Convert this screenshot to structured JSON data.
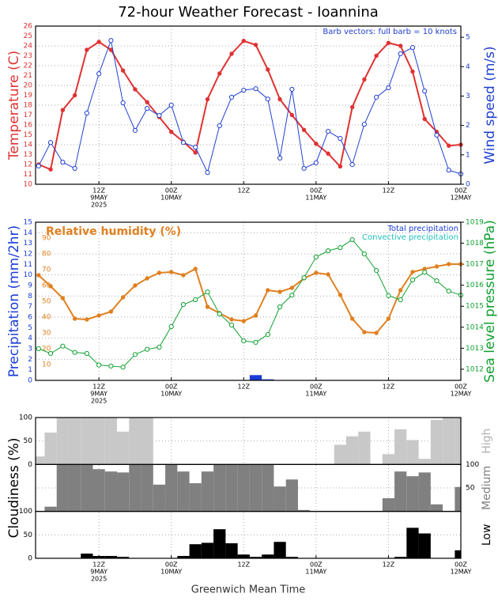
{
  "title": "72-hour Weather Forecast - Ioannina",
  "x_label": "Greenwich Mean Time",
  "chart_data": [
    {
      "type": "line",
      "ylabel": "Temperature (C)",
      "y2label": "Wind speed (m/s)",
      "annotation": "Barb vectors: full barb = 10 knots",
      "x": [
        2,
        4,
        6,
        8,
        10,
        12,
        14,
        16,
        18,
        20,
        22,
        24,
        26,
        28,
        30,
        32,
        34,
        36,
        38,
        40,
        42,
        44,
        46,
        48,
        50,
        52,
        54,
        56,
        58,
        60,
        62,
        64,
        66,
        68,
        70,
        72
      ],
      "xlim": [
        1.5,
        72
      ],
      "xticks": [
        {
          "value": 12,
          "label": [
            "12Z",
            "9MAY",
            "2025"
          ]
        },
        {
          "value": 24,
          "label": [
            "00Z",
            "10MAY"
          ]
        },
        {
          "value": 36,
          "label": [
            "12Z"
          ]
        },
        {
          "value": 48,
          "label": [
            "00Z",
            "11MAY"
          ]
        },
        {
          "value": 60,
          "label": [
            "12Z"
          ]
        },
        {
          "value": 72,
          "label": [
            "00Z",
            "12MAY"
          ]
        }
      ],
      "ylim": [
        10,
        26
      ],
      "yticks": [
        10,
        11,
        12,
        13,
        14,
        15,
        16,
        17,
        18,
        19,
        20,
        21,
        22,
        23,
        24,
        25,
        26
      ],
      "y2lim": [
        0,
        5.38
      ],
      "y2ticks": [
        0,
        1,
        2,
        3,
        4,
        5
      ],
      "grid": true,
      "series": [
        {
          "color": "#e03232",
          "marker": "filled",
          "values": [
            12,
            11.5,
            17.5,
            19,
            23.6,
            24.4,
            23.6,
            21.5,
            19.6,
            18.3,
            16.8,
            15.3,
            14.3,
            13.2,
            18.6,
            21.2,
            23.2,
            24.5,
            24.1,
            21.6,
            18.6,
            17,
            15.5,
            14.1,
            13.1,
            11.8,
            17.8,
            20.6,
            23,
            24.3,
            24,
            21.4,
            16.6,
            15.3,
            13.9,
            14
          ]
        },
        {
          "color": "#2040d0",
          "marker": "open",
          "axis": "y2",
          "values": [
            0.62,
            1.42,
            0.75,
            0.54,
            2.42,
            3.76,
            4.89,
            2.77,
            1.83,
            2.58,
            2.34,
            2.69,
            1.42,
            1.26,
            0.4,
            1.99,
            2.96,
            3.2,
            3.25,
            2.9,
            0.89,
            3.23,
            0.54,
            0.73,
            1.8,
            1.56,
            0.67,
            2.04,
            2.96,
            3.28,
            4.44,
            4.65,
            3.17,
            1.67,
            0.48,
            0.35
          ]
        }
      ]
    },
    {
      "type": "line",
      "ylabel": "Precipitation (mm/2hr)",
      "y2label": "Sea level pressure (hPa)",
      "x": [
        2,
        4,
        6,
        8,
        10,
        12,
        14,
        16,
        18,
        20,
        22,
        24,
        26,
        28,
        30,
        32,
        34,
        36,
        38,
        40,
        42,
        44,
        46,
        48,
        50,
        52,
        54,
        56,
        58,
        60,
        62,
        64,
        66,
        68,
        70,
        72
      ],
      "xlim": [
        1.5,
        72
      ],
      "xticks": [
        {
          "value": 12,
          "label": [
            "12Z",
            "9MAY",
            "2025"
          ]
        },
        {
          "value": 24,
          "label": [
            "00Z",
            "10MAY"
          ]
        },
        {
          "value": 36,
          "label": [
            "12Z"
          ]
        },
        {
          "value": 48,
          "label": [
            "00Z",
            "11MAY"
          ]
        },
        {
          "value": 60,
          "label": [
            "12Z"
          ]
        },
        {
          "value": 72,
          "label": [
            "00Z",
            "12MAY"
          ]
        }
      ],
      "ylim": [
        0,
        15
      ],
      "yticks": [
        0,
        1,
        2,
        3,
        4,
        5,
        6,
        7,
        8,
        9,
        10,
        11,
        12,
        13,
        14,
        15
      ],
      "y2lim": [
        1011.47,
        1019
      ],
      "y2ticks": [
        1012,
        1013,
        1014,
        1015,
        1016,
        1017,
        1018,
        1019
      ],
      "y3lim": [
        0,
        100
      ],
      "y3ticks": [
        10,
        20,
        30,
        40,
        50,
        60,
        70,
        80,
        90
      ],
      "grid": true,
      "series": [
        {
          "name": "Total precipitation",
          "type": "bar",
          "color": "#1a3cd8",
          "values": [
            0,
            0,
            0,
            0,
            0,
            0,
            0,
            0,
            0,
            0,
            0,
            0,
            0,
            0,
            0,
            0,
            0,
            0,
            0.5,
            0.1,
            0,
            0,
            0,
            0,
            0,
            0,
            0,
            0,
            0,
            0,
            0,
            0,
            0,
            0,
            0,
            0
          ]
        },
        {
          "name": "Convective precipitation",
          "type": "bar",
          "color": "#20c0c0",
          "values": [
            0,
            0,
            0,
            0,
            0,
            0,
            0,
            0,
            0,
            0,
            0,
            0,
            0,
            0,
            0,
            0,
            0,
            0,
            0,
            0,
            0,
            0,
            0,
            0,
            0,
            0,
            0,
            0,
            0,
            0,
            0,
            0,
            0,
            0,
            0,
            0
          ]
        },
        {
          "name": "Relative humidity (%)",
          "color": "#e08020",
          "marker": "filled",
          "axis": "y3",
          "values": [
            66.5,
            59.5,
            52,
            39,
            38.5,
            41,
            43.5,
            52.5,
            60,
            64.5,
            68,
            68.5,
            66.5,
            70.5,
            46.5,
            42.5,
            38.5,
            37.5,
            41,
            57,
            56,
            58.5,
            64.5,
            68,
            67,
            54,
            39,
            30.5,
            30,
            39,
            57,
            68.5,
            70.5,
            72,
            73.5,
            73.5
          ]
        },
        {
          "color": "#10a030",
          "marker": "open",
          "axis": "y2",
          "values": [
            1012.98,
            1012.75,
            1013.1,
            1012.8,
            1012.75,
            1012.2,
            1012.15,
            1012.1,
            1012.7,
            1012.95,
            1013.05,
            1014.03,
            1015.08,
            1015.31,
            1015.68,
            1014.63,
            1014.1,
            1013.35,
            1013.28,
            1013.65,
            1014.97,
            1015.53,
            1016.36,
            1017.34,
            1017.64,
            1017.79,
            1018.17,
            1017.49,
            1016.7,
            1015.5,
            1015.31,
            1016.25,
            1016.62,
            1016.21,
            1015.72,
            1015.53
          ]
        }
      ]
    },
    {
      "type": "bar",
      "ylabel": "Cloudiness (%)",
      "x": [
        2,
        4,
        6,
        8,
        10,
        12,
        14,
        16,
        18,
        20,
        22,
        24,
        26,
        28,
        30,
        32,
        34,
        36,
        38,
        40,
        42,
        44,
        46,
        48,
        50,
        52,
        54,
        56,
        58,
        60,
        62,
        64,
        66,
        68,
        70,
        72
      ],
      "xlim": [
        1.5,
        72
      ],
      "xticks": [
        {
          "value": 12,
          "label": [
            "12Z",
            "9MAY",
            "2025"
          ]
        },
        {
          "value": 24,
          "label": [
            "00Z",
            "10MAY"
          ]
        },
        {
          "value": 36,
          "label": [
            "12Z"
          ]
        },
        {
          "value": 48,
          "label": [
            "00Z",
            "11MAY"
          ]
        },
        {
          "value": 60,
          "label": [
            "12Z"
          ]
        },
        {
          "value": 72,
          "label": [
            "00Z",
            "12MAY"
          ]
        }
      ],
      "ylim": [
        0,
        100
      ],
      "grid": true,
      "series": [
        {
          "name": "High",
          "color": "#c8c8c8",
          "tick_side": "left",
          "yticks": [
            0,
            50,
            100
          ],
          "values": [
            17,
            68,
            100,
            100,
            100,
            100,
            100,
            70,
            100,
            100,
            0,
            0,
            0,
            0,
            0,
            0,
            0,
            0,
            0,
            0,
            0,
            0,
            0,
            0,
            0,
            42,
            60,
            70,
            0,
            22,
            75,
            52,
            12,
            95,
            100,
            100
          ]
        },
        {
          "name": "Medium",
          "color": "#808080",
          "tick_side": "right",
          "yticks": [
            50,
            100
          ],
          "values": [
            0,
            10,
            100,
            100,
            100,
            90,
            85,
            83,
            100,
            100,
            57,
            100,
            85,
            60,
            85,
            100,
            100,
            100,
            100,
            100,
            53,
            68,
            3,
            0,
            0,
            0,
            0,
            0,
            0,
            28,
            85,
            75,
            83,
            15,
            0,
            52
          ]
        },
        {
          "name": "Low",
          "color": "#000000",
          "tick_side": "left",
          "yticks": [
            0,
            50,
            100
          ],
          "values": [
            0,
            0,
            0,
            0,
            10,
            5,
            5,
            3,
            0,
            0,
            0,
            0,
            5,
            30,
            33,
            62,
            32,
            8,
            3,
            8,
            35,
            3,
            0,
            0,
            0,
            0,
            0,
            0,
            0,
            0,
            3,
            65,
            53,
            0,
            0,
            17
          ]
        }
      ]
    }
  ]
}
